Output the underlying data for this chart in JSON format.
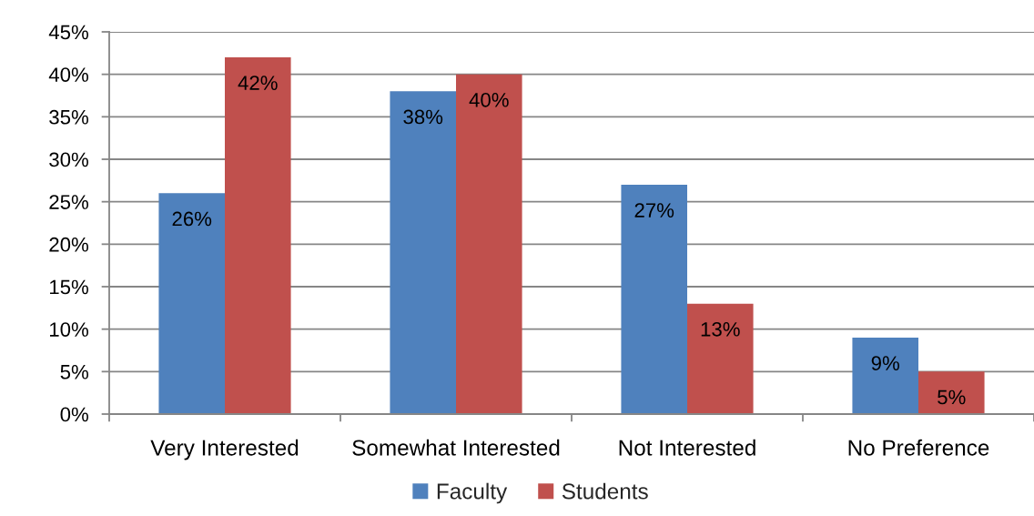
{
  "chart_data": {
    "type": "bar",
    "categories": [
      "Very Interested",
      "Somewhat Interested",
      "Not Interested",
      "No Preference"
    ],
    "series": [
      {
        "name": "Faculty",
        "color": "#4f81bd",
        "values": [
          26,
          38,
          27,
          9
        ],
        "value_labels": [
          "26%",
          "38%",
          "27%",
          "9%"
        ]
      },
      {
        "name": "Students",
        "color": "#c0504d",
        "values": [
          42,
          40,
          13,
          5
        ],
        "value_labels": [
          "42%",
          "40%",
          "13%",
          "5%"
        ]
      }
    ],
    "ylim": [
      0,
      45
    ],
    "yticks": [
      {
        "value": 0,
        "label": "0%"
      },
      {
        "value": 5,
        "label": "5%"
      },
      {
        "value": 10,
        "label": "10%"
      },
      {
        "value": 15,
        "label": "15%"
      },
      {
        "value": 20,
        "label": "20%"
      },
      {
        "value": 25,
        "label": "25%"
      },
      {
        "value": 30,
        "label": "30%"
      },
      {
        "value": 35,
        "label": "35%"
      },
      {
        "value": 40,
        "label": "40%"
      },
      {
        "value": 45,
        "label": "45%"
      }
    ],
    "grid": "y",
    "legend": "bottom"
  }
}
